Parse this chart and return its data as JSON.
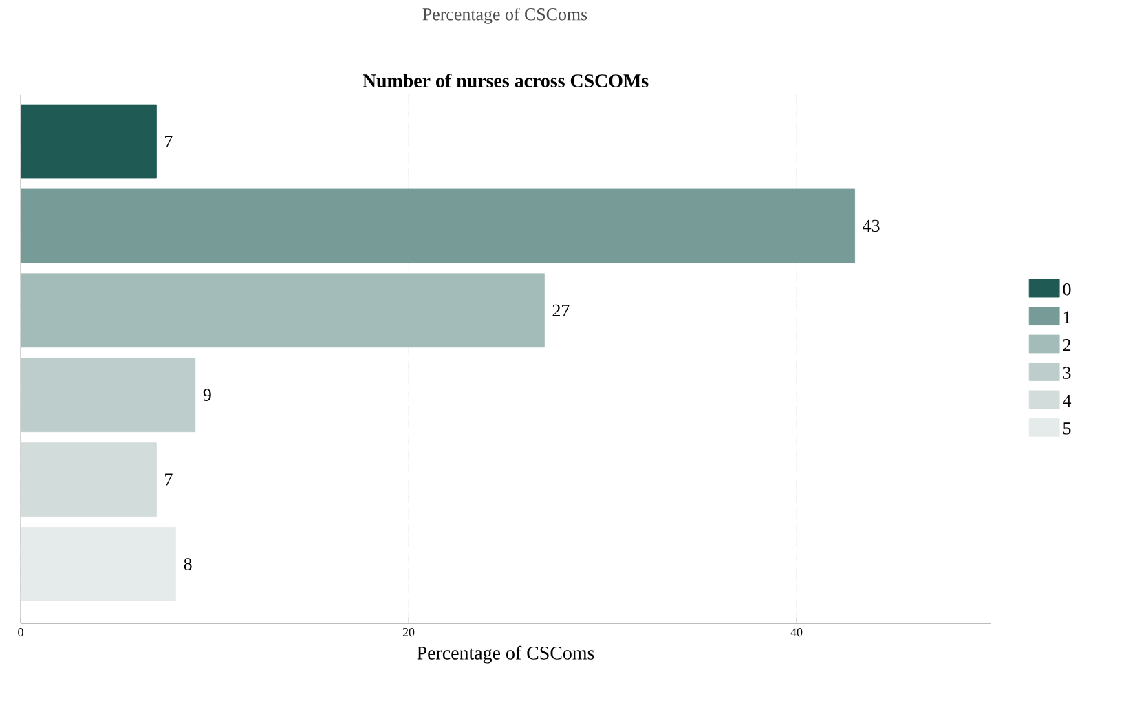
{
  "chart_data": {
    "type": "bar",
    "orientation": "horizontal",
    "title": "Number of nurses across CSCOMs",
    "xlabel": "Percentage of CSComs",
    "annotations": [
      "Percentage of CSComs"
    ],
    "categories": [
      null,
      null,
      null,
      null,
      null,
      null
    ],
    "series": [
      {
        "name": "0",
        "color": "#1f5a55",
        "values": [
          7,
          null,
          null,
          null,
          null,
          null
        ]
      },
      {
        "name": "1",
        "color": "#779b97",
        "values": [
          null,
          43,
          null,
          null,
          null,
          null
        ]
      },
      {
        "name": "2",
        "color": "#a4bcb9",
        "values": [
          null,
          null,
          27,
          null,
          null,
          null
        ]
      },
      {
        "name": "3",
        "color": "#bccdcb",
        "values": [
          null,
          null,
          null,
          9,
          null,
          null
        ]
      },
      {
        "name": "4",
        "color": "#d2dcdb",
        "values": [
          null,
          null,
          null,
          null,
          7,
          null
        ]
      },
      {
        "name": "5",
        "color": "#e5ebea",
        "values": [
          null,
          null,
          null,
          null,
          null,
          8
        ]
      }
    ],
    "xlim": [
      0,
      50
    ],
    "xticks": [
      0,
      20,
      40
    ],
    "grid": "x",
    "legend": "right",
    "data_labels": true
  }
}
